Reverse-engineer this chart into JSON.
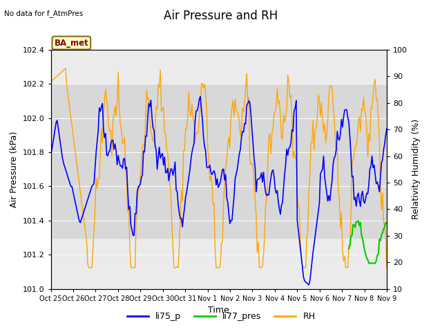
{
  "title": "Air Pressure and RH",
  "top_left_text": "No data for f_AtmPres",
  "station_label": "BA_met",
  "xlabel": "Time",
  "ylabel_left": "Air Pressure (kPa)",
  "ylabel_right": "Relativity Humidity (%)",
  "ylim_left": [
    101.0,
    102.4
  ],
  "ylim_right": [
    10,
    100
  ],
  "yticks_left": [
    101.0,
    101.2,
    101.4,
    101.6,
    101.8,
    102.0,
    102.2,
    102.4
  ],
  "yticks_right": [
    10,
    20,
    30,
    40,
    50,
    60,
    70,
    80,
    90,
    100
  ],
  "xtick_labels": [
    "Oct 25",
    "Oct 26",
    "Oct 27",
    "Oct 28",
    "Oct 29",
    "Oct 30",
    "Oct 31",
    "Nov 1",
    "Nov 2",
    "Nov 3",
    "Nov 4",
    "Nov 5",
    "Nov 6",
    "Nov 7",
    "Nov 8",
    "Nov 9"
  ],
  "color_li75": "#0000FF",
  "color_li77": "#00CC00",
  "color_rh": "#FFA500",
  "background_color": "#FFFFFF",
  "plot_bg_color": "#EBEBEB",
  "band_lo": 101.3,
  "band_hi": 102.2,
  "band_color": "#D8D8D8",
  "legend_labels": [
    "li75_p",
    "li77_pres",
    "RH"
  ],
  "title_fontsize": 12,
  "axis_fontsize": 9,
  "tick_fontsize": 8
}
